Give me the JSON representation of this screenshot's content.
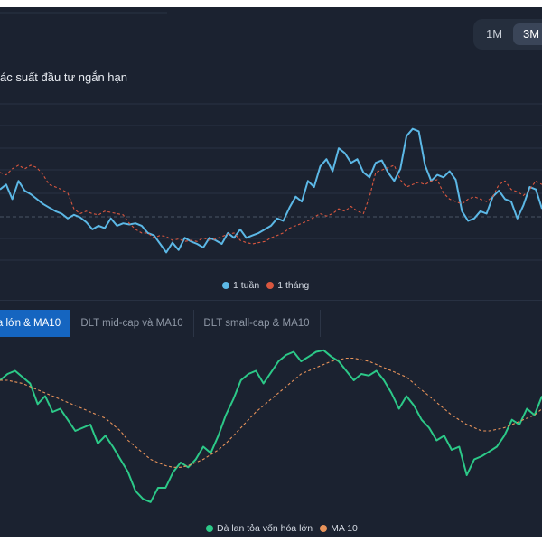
{
  "range_buttons": [
    "1M",
    "3M"
  ],
  "top_chart": {
    "title": "ác suất đầu tư ngắn hạn",
    "legend": [
      {
        "label": "1 tuần",
        "color": "#5cb8e6"
      },
      {
        "label": "1 tháng",
        "color": "#d9573f"
      }
    ]
  },
  "tabs": [
    "a lớn & MA10",
    "ĐLT mid-cap và MA10",
    "ĐLT small-cap & MA10"
  ],
  "bottom_chart": {
    "legend": [
      {
        "label": "Đà lan tỏa vốn hóa lớn",
        "color": "#2cc988"
      },
      {
        "label": "MA 10",
        "color": "#e8935a"
      }
    ]
  },
  "chart_data": [
    {
      "type": "line",
      "title": "",
      "xlabel": "",
      "ylabel": "",
      "grid": true,
      "ylim": [
        0,
        100
      ],
      "series": [
        {
          "name": "1 tuần",
          "color": "#5cb8e6",
          "style": "solid",
          "values": [
            48,
            52,
            40,
            55,
            47,
            44,
            40,
            36,
            33,
            30,
            28,
            24,
            27,
            25,
            21,
            15,
            18,
            16,
            24,
            18,
            20,
            19,
            20,
            18,
            12,
            10,
            3,
            -4,
            4,
            -2,
            8,
            5,
            3,
            0,
            8,
            6,
            3,
            12,
            8,
            15,
            8,
            10,
            12,
            15,
            18,
            24,
            22,
            33,
            42,
            38,
            55,
            50,
            67,
            73,
            63,
            82,
            78,
            70,
            73,
            62,
            58,
            70,
            72,
            62,
            55,
            65,
            92,
            98,
            96,
            68,
            55,
            60,
            58,
            63,
            56,
            30,
            22,
            24,
            30,
            28,
            42,
            47,
            40,
            38,
            24,
            35,
            50,
            48,
            32
          ]
        },
        {
          "name": "1 tháng",
          "color": "#d9573f",
          "style": "dashed",
          "values": [
            62,
            60,
            65,
            68,
            65,
            68,
            66,
            60,
            52,
            50,
            48,
            45,
            32,
            28,
            30,
            28,
            27,
            30,
            29,
            28,
            27,
            20,
            15,
            12,
            12,
            8,
            10,
            9,
            6,
            7,
            5,
            6,
            5,
            8,
            6,
            7,
            9,
            11,
            12,
            6,
            4,
            3,
            4,
            5,
            8,
            10,
            12,
            16,
            18,
            20,
            22,
            25,
            28,
            26,
            28,
            32,
            30,
            34,
            30,
            28,
            42,
            62,
            64,
            66,
            68,
            56,
            50,
            52,
            54,
            52,
            55,
            56,
            45,
            40,
            38,
            36,
            40,
            42,
            40,
            38,
            42,
            52,
            55,
            48,
            46,
            43,
            48,
            55,
            52
          ]
        }
      ]
    },
    {
      "type": "line",
      "title": "",
      "xlabel": "",
      "ylabel": "",
      "grid": false,
      "ylim": [
        0,
        100
      ],
      "series": [
        {
          "name": "Đà lan tỏa vốn hóa lớn",
          "color": "#2cc988",
          "style": "solid",
          "values": [
            80,
            84,
            86,
            82,
            78,
            65,
            70,
            60,
            62,
            55,
            48,
            50,
            52,
            40,
            45,
            38,
            30,
            22,
            10,
            5,
            3,
            12,
            12,
            22,
            28,
            25,
            30,
            38,
            34,
            45,
            58,
            68,
            80,
            84,
            86,
            78,
            85,
            92,
            96,
            98,
            92,
            95,
            98,
            99,
            95,
            92,
            86,
            80,
            84,
            83,
            86,
            80,
            72,
            62,
            70,
            64,
            55,
            50,
            42,
            45,
            36,
            38,
            20,
            30,
            32,
            35,
            38,
            45,
            55,
            52,
            62,
            58,
            70
          ]
        },
        {
          "name": "MA 10",
          "color": "#e8935a",
          "style": "dashed",
          "values": [
            80,
            80,
            79,
            78,
            76,
            74,
            72,
            70,
            68,
            66,
            64,
            62,
            60,
            58,
            56,
            52,
            48,
            42,
            38,
            34,
            30,
            28,
            26,
            25,
            25,
            26,
            28,
            30,
            33,
            36,
            40,
            45,
            50,
            55,
            60,
            64,
            68,
            72,
            76,
            80,
            84,
            86,
            88,
            90,
            92,
            93,
            94,
            94,
            93,
            92,
            90,
            88,
            86,
            84,
            82,
            78,
            74,
            70,
            66,
            62,
            58,
            55,
            52,
            50,
            48,
            48,
            49,
            50,
            52,
            54,
            56,
            58,
            62
          ]
        }
      ]
    }
  ]
}
